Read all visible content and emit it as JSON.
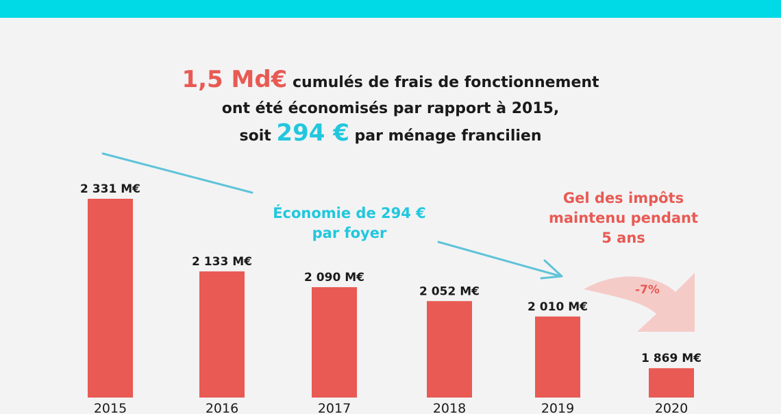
{
  "colors": {
    "top_bar": "#00d9e6",
    "bar": "#e85a53",
    "accent_red": "#e85a53",
    "accent_cyan": "#21c7dd",
    "arrow_cyan": "#5fc3d8",
    "decline_arrow": "#f4c3c0",
    "text": "#1a1a1a"
  },
  "headline": {
    "line1_highlight": "1,5 Md€",
    "line1_rest": " cumulés de frais de fonctionnement",
    "line2": "ont été économisés par rapport à 2015,",
    "line3_prefix": "soit ",
    "line3_highlight": "294 €",
    "line3_suffix": " par ménage francilien"
  },
  "annotations": {
    "economy_line1": "Économie de 294 €",
    "economy_line2": "par foyer",
    "freeze_line1": "Gel des impôts",
    "freeze_line2": "maintenu pendant",
    "freeze_line3": "5 ans",
    "decline_percent": "-7%"
  },
  "chart_data": {
    "type": "bar",
    "categories": [
      "2015",
      "2016",
      "2017",
      "2018",
      "2019",
      "2020"
    ],
    "values": [
      2331,
      2133,
      2090,
      2052,
      2010,
      1869
    ],
    "value_labels": [
      "2 331 M€",
      "2 133 M€",
      "2 090 M€",
      "2 052 M€",
      "2 010 M€",
      "1 869 M€"
    ],
    "unit": "M€",
    "title": "",
    "xlabel": "",
    "ylabel": "",
    "grid": false,
    "legend": "none"
  }
}
